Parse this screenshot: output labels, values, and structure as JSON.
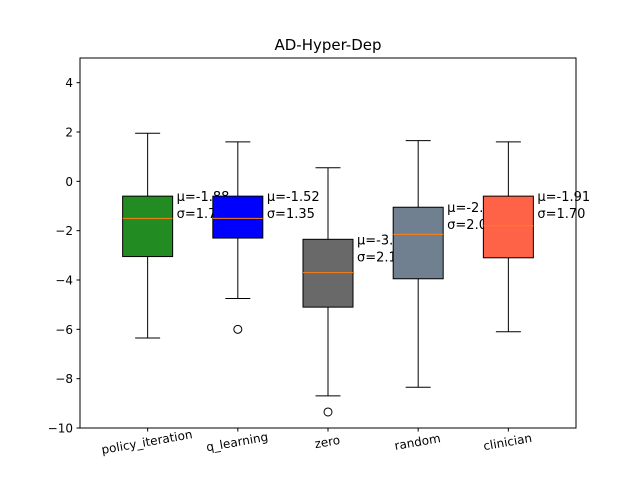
{
  "chart_data": {
    "type": "box",
    "title": "AD-Hyper-Dep",
    "xlabel": "",
    "ylabel": "",
    "ylim": [
      -10,
      5
    ],
    "yticks": [
      -10,
      -8,
      -6,
      -4,
      -2,
      0,
      2,
      4
    ],
    "ytick_labels": [
      "−10",
      "−8",
      "−6",
      "−4",
      "−2",
      "0",
      "2",
      "4"
    ],
    "grid": false,
    "median_color": "#ff7f0e",
    "categories": [
      "policy_iteration",
      "q_learning",
      "zero",
      "random",
      "clinician"
    ],
    "series": [
      {
        "category": "policy_iteration",
        "color": "#228b22",
        "whisker_low": -6.35,
        "q1": -3.05,
        "median": -1.5,
        "q3": -0.6,
        "whisker_high": 1.95,
        "outliers": [],
        "mean_label": "μ=-1.88",
        "std_label": "σ=1.72"
      },
      {
        "category": "q_learning",
        "color": "#0000ff",
        "whisker_low": -4.75,
        "q1": -2.3,
        "median": -1.5,
        "q3": -0.6,
        "whisker_high": 1.6,
        "outliers": [
          -6.0
        ],
        "mean_label": "μ=-1.52",
        "std_label": "σ=1.35"
      },
      {
        "category": "zero",
        "color": "#696969",
        "whisker_low": -8.7,
        "q1": -5.1,
        "median": -3.7,
        "q3": -2.35,
        "whisker_high": 0.55,
        "outliers": [
          -9.35
        ],
        "mean_label": "μ=-3.81",
        "std_label": "σ=2.15"
      },
      {
        "category": "random",
        "color": "#708090",
        "whisker_low": -8.35,
        "q1": -3.95,
        "median": -2.15,
        "q3": -1.05,
        "whisker_high": 1.65,
        "outliers": [],
        "mean_label": "μ=-2.52",
        "std_label": "σ=2.01"
      },
      {
        "category": "clinician",
        "color": "#ff6347",
        "whisker_low": -6.1,
        "q1": -3.1,
        "median": -1.8,
        "q3": -0.6,
        "whisker_high": 1.6,
        "outliers": [],
        "mean_label": "μ=-1.91",
        "std_label": "σ=1.70"
      }
    ]
  }
}
